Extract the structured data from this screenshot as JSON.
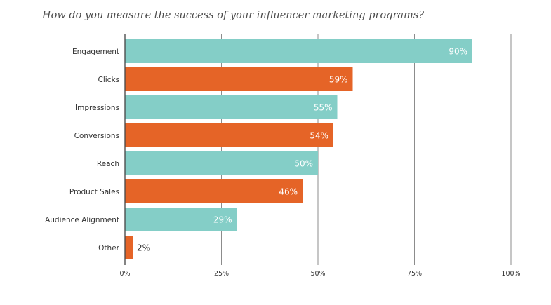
{
  "chart_data": {
    "type": "bar",
    "orientation": "horizontal",
    "title": "How do you measure the success of your influencer marketing programs?",
    "categories": [
      "Engagement",
      "Clicks",
      "Impressions",
      "Conversions",
      "Reach",
      "Product Sales",
      "Audience Alignment",
      "Other"
    ],
    "values": [
      90,
      59,
      55,
      54,
      50,
      46,
      29,
      2
    ],
    "value_labels": [
      "90%",
      "59%",
      "55%",
      "54%",
      "50%",
      "46%",
      "29%",
      "2%"
    ],
    "bar_colors": [
      "#84cec7",
      "#e56427",
      "#84cec7",
      "#e56427",
      "#84cec7",
      "#e56427",
      "#84cec7",
      "#e56427"
    ],
    "xlim": [
      0,
      100
    ],
    "x_ticks": [
      0,
      25,
      50,
      75,
      100
    ],
    "x_tick_labels": [
      "0%",
      "25%",
      "50%",
      "75%",
      "100%"
    ],
    "grid": true,
    "legend": "none",
    "xlabel": "",
    "ylabel": ""
  }
}
